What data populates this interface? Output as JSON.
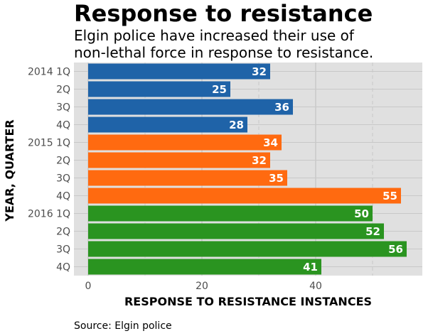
{
  "chart_data": {
    "type": "bar",
    "orientation": "horizontal",
    "title": "Response to resistance",
    "subtitle_lines": [
      "Elgin police have increased their use of",
      "non-lethal force in response to resistance."
    ],
    "xlabel": "RESPONSE TO RESISTANCE INSTANCES",
    "ylabel": "YEAR, QUARTER",
    "xlim": [
      0,
      57
    ],
    "x_ticks": [
      0,
      20,
      40
    ],
    "x_tick_labels": [
      "0",
      "20",
      "40"
    ],
    "grid": true,
    "categories": [
      "2014 1Q",
      "2Q",
      "3Q",
      "4Q",
      "2015 1Q",
      "2Q",
      "3Q",
      "4Q",
      "2016 1Q",
      "2Q",
      "3Q",
      "4Q"
    ],
    "values": [
      32,
      25,
      36,
      28,
      34,
      32,
      35,
      55,
      50,
      52,
      56,
      41
    ],
    "data_labels": [
      "32",
      "25",
      "36",
      "28",
      "34",
      "32",
      "35",
      "55",
      "50",
      "52",
      "56",
      "41"
    ],
    "bar_colors": [
      "#1f63a8",
      "#1f63a8",
      "#1f63a8",
      "#1f63a8",
      "#ff6a10",
      "#ff6a10",
      "#ff6a10",
      "#ff6a10",
      "#2a9420",
      "#2a9420",
      "#2a9420",
      "#2a9420"
    ],
    "panel_background": "#e0e0e0",
    "source": "Source: Elgin police"
  }
}
